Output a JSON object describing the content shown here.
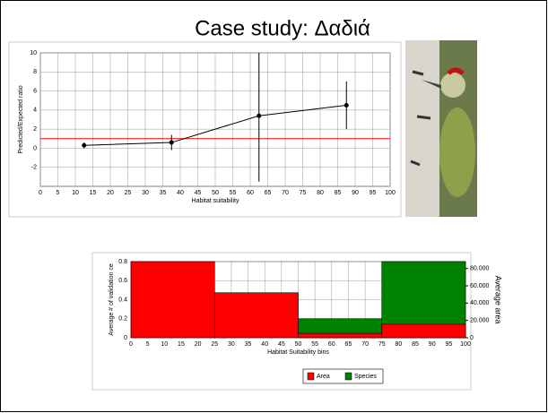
{
  "title": "Case study: Δαδιά",
  "chart_data": [
    {
      "type": "scatter",
      "x_label": "Habitat suitability",
      "y_label": "Predicted/Expected ratio",
      "x": [
        12.5,
        37.5,
        62.5,
        87.5
      ],
      "values": [
        0.3,
        0.6,
        3.4,
        4.5
      ],
      "errors": [
        0.3,
        0.8,
        6.9,
        2.5
      ],
      "color": "#000000",
      "hline": 1,
      "hline_color": "#ff0000",
      "xlim": [
        0,
        100
      ],
      "xticks": [
        0,
        5,
        10,
        15,
        20,
        25,
        30,
        35,
        40,
        45,
        50,
        55,
        60,
        65,
        70,
        75,
        80,
        85,
        90,
        95,
        100
      ],
      "ylim": [
        -4,
        10
      ],
      "yticks": [
        -2,
        0,
        2,
        4,
        6,
        8,
        10
      ],
      "grid": true
    },
    {
      "type": "histogram",
      "x_label": "Habitat Suitability bins",
      "y_label": "Average # of validation ce",
      "y2_label": "Average area",
      "bins": [
        0,
        25,
        50,
        75,
        100
      ],
      "series": [
        {
          "name": "Species",
          "color": "#008000",
          "values": [
            0,
            0,
            0.2,
            0.8
          ]
        },
        {
          "name": "Area",
          "color": "#ff0000",
          "axis": "y2",
          "values": [
            88000,
            52000,
            5000,
            15600
          ]
        }
      ],
      "xlim": [
        0,
        100
      ],
      "xticks": [
        0,
        5,
        10,
        15,
        20,
        25,
        30,
        35,
        40,
        45,
        50,
        55,
        60,
        65,
        70,
        75,
        80,
        85,
        90,
        95,
        100
      ],
      "ylim": [
        0,
        0.8
      ],
      "yticks": [
        0,
        0.2,
        0.4,
        0.6,
        0.8
      ],
      "y2lim": [
        0,
        88000
      ],
      "y2ticks": [
        0,
        {
          "value": 20000,
          "label": "20.000"
        },
        {
          "value": 40000,
          "label": "40.000"
        },
        {
          "value": 60000,
          "label": "60.000"
        },
        {
          "value": 80000,
          "label": "80.000"
        }
      ],
      "grid": true,
      "legend": "bottom"
    }
  ]
}
